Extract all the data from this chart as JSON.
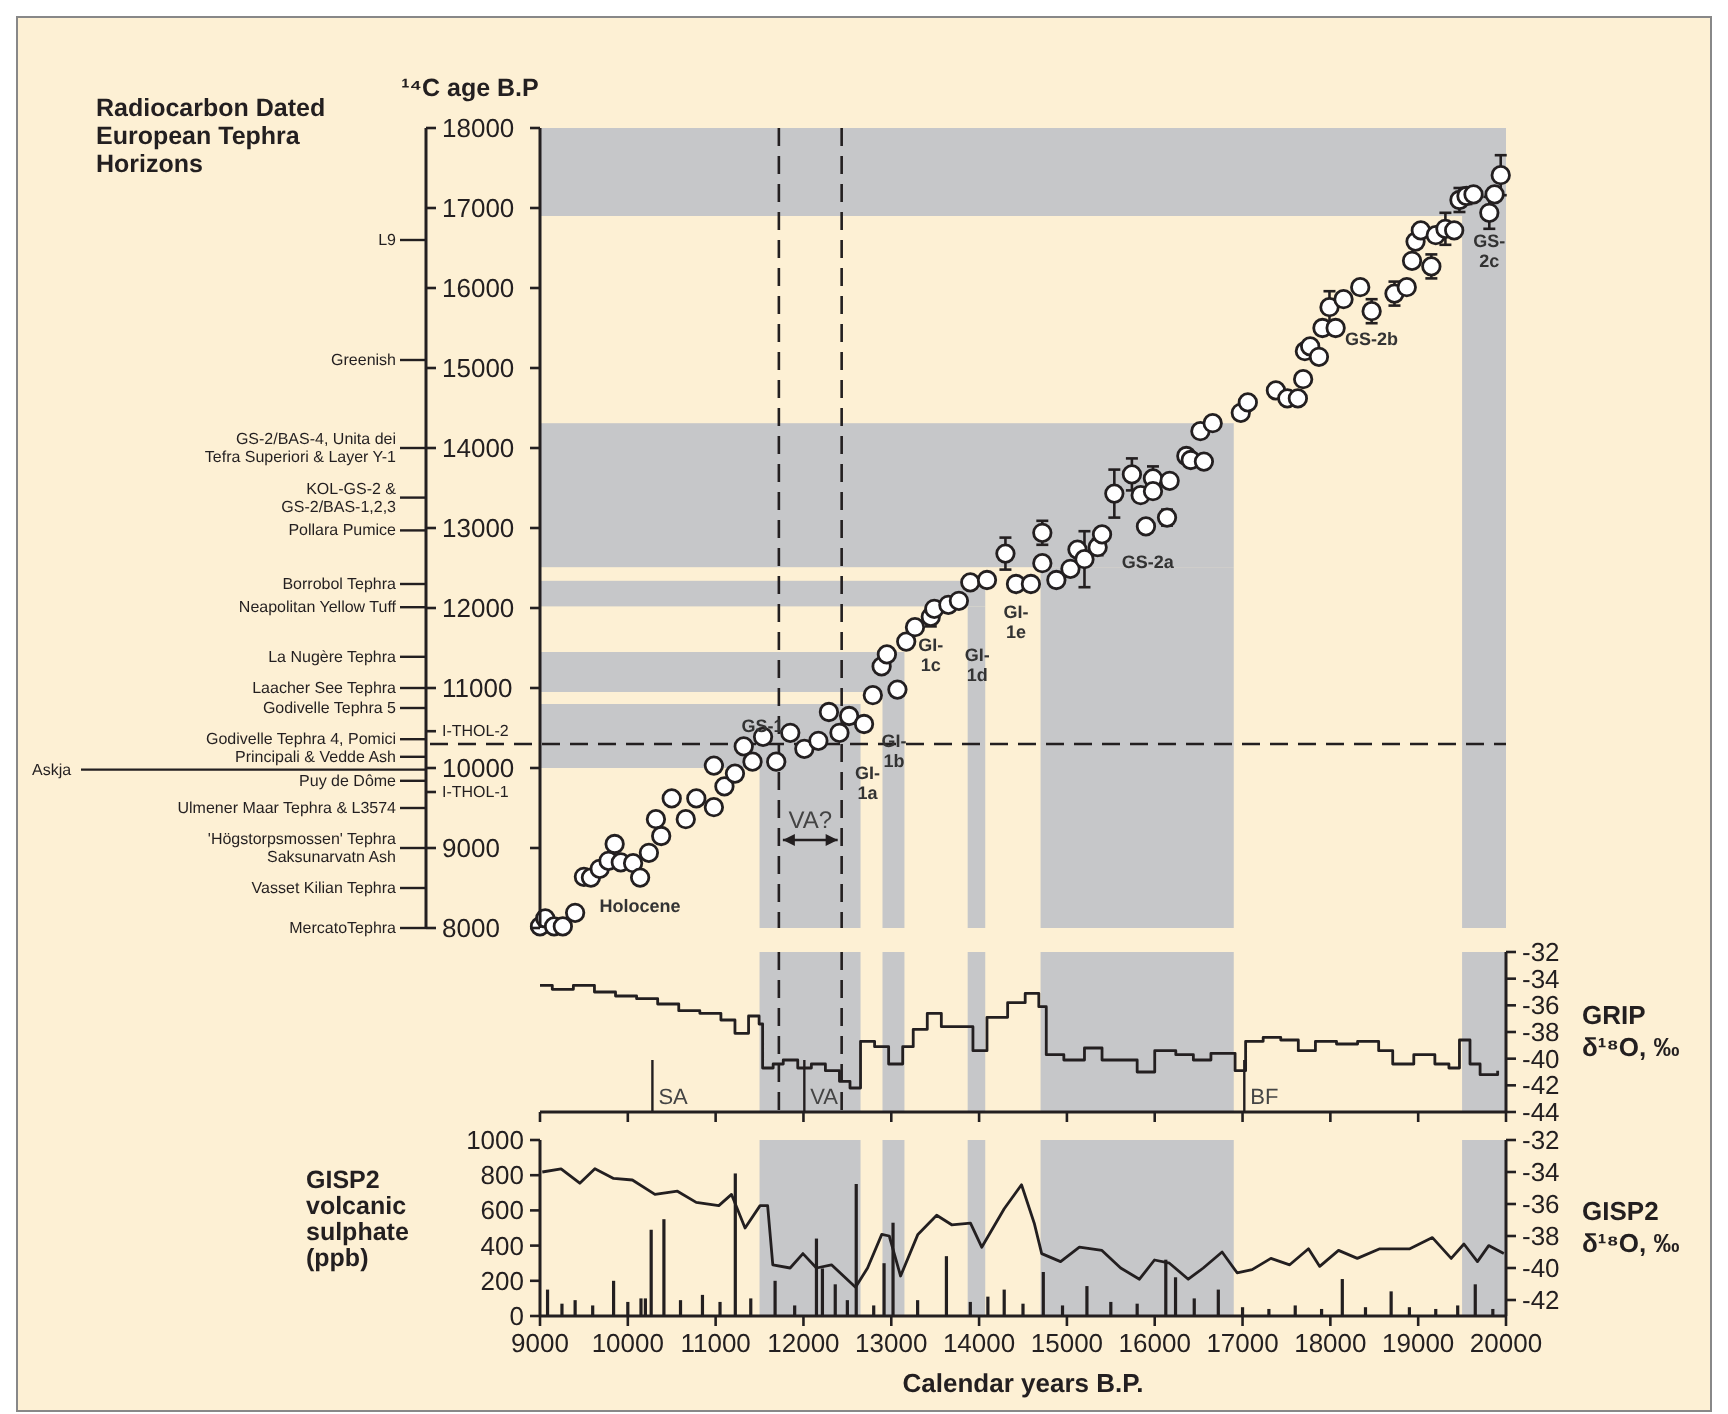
{
  "chart_data": [
    {
      "type": "scatter",
      "title": "Radiocarbon Dated\nEuropean Tephra\nHorizons",
      "ylabel": "¹⁴C age B.P",
      "xlim": [
        9000,
        20000
      ],
      "ylim": [
        8000,
        18000
      ],
      "yticks": [
        8000,
        9000,
        10000,
        11000,
        12000,
        13000,
        14000,
        15000,
        16000,
        17000,
        18000
      ],
      "marker": "circle",
      "color": "#ffffff",
      "x": [
        9000,
        9060,
        9160,
        9260,
        9400,
        9500,
        9580,
        9680,
        9780,
        9850,
        9920,
        10060,
        10140,
        10240,
        10320,
        10380,
        10500,
        10660,
        10780,
        10980,
        11100,
        11220,
        10980,
        11320,
        11420,
        11540,
        11690,
        11850,
        12010,
        12170,
        12290,
        12410,
        12520,
        12690,
        12790,
        12890,
        12950,
        13070,
        13170,
        13270,
        13450,
        13490,
        13650,
        13770,
        13900,
        14090,
        14300,
        14420,
        14590,
        14720,
        14720,
        14880,
        15040,
        15120,
        15200,
        15350,
        15400,
        15540,
        15740,
        15840,
        15900,
        15980,
        15980,
        16140,
        16170,
        16360,
        16410,
        16560,
        16520,
        16660,
        16980,
        17060,
        17380,
        17510,
        17630,
        17690,
        17710,
        17770,
        17870,
        17910,
        17990,
        18060,
        18150,
        18340,
        18470,
        18730,
        18870,
        18930,
        18970,
        19030,
        19150,
        19200,
        19310,
        19410,
        19470,
        19550,
        19630,
        19810,
        19870,
        19940
      ],
      "values": [
        8020,
        8120,
        8020,
        8020,
        8190,
        8640,
        8630,
        8740,
        8840,
        9050,
        8820,
        8810,
        8630,
        8940,
        9360,
        9150,
        9620,
        9360,
        9620,
        9510,
        9770,
        9930,
        10030,
        10270,
        10080,
        10390,
        10080,
        10440,
        10240,
        10340,
        10700,
        10440,
        10650,
        10550,
        10910,
        11270,
        11420,
        10980,
        11580,
        11760,
        11890,
        11990,
        12040,
        12090,
        12320,
        12350,
        12680,
        12300,
        12300,
        12940,
        12560,
        12350,
        12490,
        12730,
        12610,
        12760,
        12920,
        13430,
        13670,
        13410,
        13020,
        13620,
        13460,
        13130,
        13590,
        13900,
        13850,
        13830,
        14210,
        14310,
        14440,
        14570,
        14720,
        14620,
        14620,
        14860,
        15210,
        15270,
        15140,
        15500,
        15760,
        15500,
        15860,
        16010,
        15710,
        15930,
        16010,
        16340,
        16580,
        16720,
        16270,
        16660,
        16740,
        16720,
        17100,
        17150,
        17170,
        16940,
        17170,
        17410
      ],
      "errors": [
        null,
        null,
        null,
        null,
        null,
        null,
        null,
        null,
        null,
        null,
        null,
        null,
        null,
        null,
        null,
        null,
        null,
        null,
        null,
        null,
        null,
        null,
        null,
        null,
        null,
        null,
        null,
        null,
        null,
        null,
        null,
        null,
        null,
        null,
        null,
        null,
        null,
        null,
        null,
        null,
        120,
        null,
        null,
        null,
        null,
        null,
        200,
        null,
        null,
        150,
        null,
        null,
        null,
        null,
        350,
        100,
        null,
        300,
        200,
        null,
        null,
        150,
        null,
        100,
        null,
        null,
        null,
        null,
        null,
        null,
        null,
        null,
        null,
        null,
        null,
        null,
        null,
        null,
        null,
        null,
        200,
        null,
        null,
        null,
        150,
        150,
        null,
        null,
        null,
        null,
        150,
        null,
        200,
        null,
        150,
        100,
        null,
        200,
        null,
        250
      ],
      "bands": [
        {
          "axis": "x",
          "from": 11500,
          "to": 12650,
          "color": "#c6c7c9"
        },
        {
          "axis": "x",
          "from": 12900,
          "to": 13150,
          "color": "#c6c7c9"
        },
        {
          "axis": "x",
          "from": 13870,
          "to": 14070,
          "color": "#c6c7c9"
        },
        {
          "axis": "x",
          "from": 14700,
          "to": 16900,
          "color": "#c6c7c9"
        },
        {
          "axis": "x",
          "from": 19500,
          "to": 20000,
          "color": "#c6c7c9"
        },
        {
          "axis": "y",
          "from": 10000,
          "to": 10800,
          "color": "#c6c7c9"
        },
        {
          "axis": "y",
          "from": 10950,
          "to": 11450,
          "color": "#c6c7c9"
        },
        {
          "axis": "y",
          "from": 12020,
          "to": 12340,
          "color": "#c6c7c9"
        },
        {
          "axis": "y",
          "from": 12510,
          "to": 14310,
          "color": "#c6c7c9"
        },
        {
          "axis": "y",
          "from": 16900,
          "to": 18000,
          "color": "#c6c7c9"
        }
      ],
      "ref_lines": [
        {
          "axis": "y",
          "value": 10300,
          "line_style": "dashed"
        },
        {
          "axis": "x",
          "value": 11720,
          "line_style": "dashed",
          "label": "VA?"
        },
        {
          "axis": "x",
          "value": 12435,
          "line_style": "dashed"
        },
        {
          "axis": "y",
          "value": 16600,
          "label": "L9"
        },
        {
          "axis": "y",
          "value": 15100,
          "label": "Greenish"
        },
        {
          "axis": "y",
          "value": 14000,
          "label": "GS-2/BAS-4, Unita dei\nTefra Superiori & Layer Y-1"
        },
        {
          "axis": "y",
          "value": 13380,
          "label": "KOL-GS-2 &\nGS-2/BAS-1,2,3"
        },
        {
          "axis": "y",
          "value": 12970,
          "label": "Pollara Pumice"
        },
        {
          "axis": "y",
          "value": 12300,
          "label": "Borrobol Tephra"
        },
        {
          "axis": "y",
          "value": 12010,
          "label": "Neapolitan Yellow Tuff"
        },
        {
          "axis": "y",
          "value": 11390,
          "label": "La Nugère Tephra"
        },
        {
          "axis": "y",
          "value": 11000,
          "label": "Laacher See Tephra"
        },
        {
          "axis": "y",
          "value": 10750,
          "label": "Godivelle Tephra 5"
        },
        {
          "axis": "y",
          "value": 10460,
          "label": "I-THOL-2"
        },
        {
          "axis": "y",
          "value": 10360,
          "label": "Godivelle Tephra 4, Pomici"
        },
        {
          "axis": "y",
          "value": 10140,
          "label": "Principali & Vedde Ash"
        },
        {
          "axis": "y",
          "value": 9980,
          "label": "Askja"
        },
        {
          "axis": "y",
          "value": 9840,
          "label": "Puy de Dôme"
        },
        {
          "axis": "y",
          "value": 9700,
          "label": "I-THOL-1"
        },
        {
          "axis": "y",
          "value": 9500,
          "label": "Ulmener Maar Tephra & L3574"
        },
        {
          "axis": "y",
          "value": 9000,
          "label": "'Högstorpsmossen' Tephra\nSaksunarvatn Ash"
        },
        {
          "axis": "y",
          "value": 8500,
          "label": "Vasset Kilian Tephra"
        },
        {
          "axis": "y",
          "value": 8000,
          "label": "MercatoTephra"
        }
      ],
      "annotations": [
        {
          "text": "Holocene",
          "x": 10140,
          "y": 8630
        },
        {
          "text": "GS-1",
          "x": 11535,
          "y": 10300
        },
        {
          "text": "GI-\n1a",
          "x": 12730,
          "y": 9940
        },
        {
          "text": "GI-\n1b",
          "x": 13030,
          "y": 10340
        },
        {
          "text": "GI-\n1c",
          "x": 13450,
          "y": 11890
        },
        {
          "text": "GI-\n1d",
          "x": 13980,
          "y": 11410
        },
        {
          "text": "GI-\n1e",
          "x": 14420,
          "y": 12300
        },
        {
          "text": "GS-2a",
          "x": 15920,
          "y": 12580
        },
        {
          "text": "GS-2b",
          "x": 18470,
          "y": 15710
        },
        {
          "text": "GS-\n2c",
          "x": 19810,
          "y": 16940
        }
      ]
    },
    {
      "type": "step",
      "ylabel": "GRIP\nδ¹⁸O, ‰",
      "xlim": [
        9000,
        20000
      ],
      "ylim": [
        -44,
        -32
      ],
      "tick_labels": "y",
      "color": "#231f20",
      "xticks": [
        {
          "value": 9000,
          "label": null
        },
        {
          "value": 10000,
          "label": null
        },
        {
          "value": 11000,
          "label": null
        },
        {
          "value": 12000,
          "label": null
        },
        {
          "value": 13000,
          "label": null
        },
        {
          "value": 14000,
          "label": null
        },
        {
          "value": 15000,
          "label": null
        },
        {
          "value": 16000,
          "label": null
        },
        {
          "value": 17000,
          "label": null
        },
        {
          "value": 18000,
          "label": null
        },
        {
          "value": 19000,
          "label": null
        },
        {
          "value": 20000,
          "label": null
        }
      ],
      "yticks": [
        -44,
        -42,
        -40,
        -38,
        -36,
        -34,
        -32
      ],
      "x": [
        9000,
        9140,
        9380,
        9620,
        9860,
        10100,
        10340,
        10580,
        10820,
        11060,
        11220,
        11375,
        11495,
        11535,
        11655,
        11770,
        11935,
        12090,
        12250,
        12410,
        12530,
        12650,
        12810,
        12970,
        13130,
        13250,
        13410,
        13570,
        13770,
        13930,
        14090,
        14325,
        14525,
        14680,
        14765,
        14965,
        15200,
        15400,
        15600,
        15800,
        16000,
        16240,
        16440,
        16640,
        16915,
        17035,
        17235,
        17435,
        17635,
        17830,
        18070,
        18310,
        18550,
        18710,
        18950,
        19190,
        19350,
        19470,
        19590,
        19705,
        19905
      ],
      "values": [
        -34.5,
        -34.8,
        -34.5,
        -35.0,
        -35.3,
        -35.5,
        -35.9,
        -36.4,
        -36.6,
        -37.1,
        -38.1,
        -36.8,
        -37.4,
        -40.7,
        -40.4,
        -40.1,
        -40.7,
        -40.4,
        -40.9,
        -41.7,
        -42.2,
        -38.7,
        -39.1,
        -40.4,
        -39.1,
        -37.8,
        -36.6,
        -37.6,
        -37.6,
        -39.4,
        -36.9,
        -35.8,
        -35.1,
        -36.1,
        -39.7,
        -40.1,
        -39.2,
        -40.1,
        -40.1,
        -41.0,
        -39.4,
        -39.7,
        -40.1,
        -39.6,
        -40.9,
        -38.7,
        -38.4,
        -38.6,
        -39.4,
        -38.7,
        -38.9,
        -38.7,
        -39.4,
        -40.4,
        -39.7,
        -40.4,
        -40.7,
        -38.6,
        -40.4,
        -41.2,
        -40.9
      ],
      "bands": [
        {
          "axis": "x",
          "from": 11500,
          "to": 12650,
          "color": "#c6c7c9"
        },
        {
          "axis": "x",
          "from": 12900,
          "to": 13150,
          "color": "#c6c7c9"
        },
        {
          "axis": "x",
          "from": 13870,
          "to": 14070,
          "color": "#c6c7c9"
        },
        {
          "axis": "x",
          "from": 14700,
          "to": 16900,
          "color": "#c6c7c9"
        },
        {
          "axis": "x",
          "from": 19500,
          "to": 20000,
          "color": "#c6c7c9"
        }
      ],
      "ref_lines": [
        {
          "axis": "x",
          "value": 11720,
          "line_style": "dashed"
        },
        {
          "axis": "x",
          "value": 12435,
          "line_style": "dashed"
        },
        {
          "axis": "x",
          "value": 10280,
          "label": "SA"
        },
        {
          "axis": "x",
          "value": 12010,
          "label": "VA"
        },
        {
          "axis": "x",
          "value": 17020,
          "label": "BF"
        }
      ]
    },
    {
      "type": "bar",
      "ylabel": "GISP2\nvolcanic\nsulphate\n(ppb)",
      "y2label": "GISP2\nδ¹⁸O, ‰",
      "xlabel": "Calendar years B.P.",
      "xlim": [
        9000,
        20000
      ],
      "xticks": [
        9000,
        10000,
        11000,
        12000,
        13000,
        14000,
        15000,
        16000,
        17000,
        18000,
        19000,
        20000
      ],
      "ylim": [
        0,
        1000
      ],
      "yticks": [
        0,
        200,
        400,
        600,
        800,
        1000
      ],
      "y2lim": [
        -43,
        -32
      ],
      "y2ticks": [
        -42,
        -40,
        -38,
        -36,
        -34,
        -32
      ],
      "bands": [
        {
          "axis": "x",
          "from": 11500,
          "to": 12650,
          "color": "#c6c7c9"
        },
        {
          "axis": "x",
          "from": 12900,
          "to": 13150,
          "color": "#c6c7c9"
        },
        {
          "axis": "x",
          "from": 13870,
          "to": 14070,
          "color": "#c6c7c9"
        },
        {
          "axis": "x",
          "from": 14700,
          "to": 16900,
          "color": "#c6c7c9"
        },
        {
          "axis": "x",
          "from": 19500,
          "to": 20000,
          "color": "#c6c7c9"
        }
      ],
      "series": [
        {
          "color": "#231f20",
          "x": [
            9086,
            9250,
            9400,
            9600,
            9838,
            10000,
            10150,
            10200,
            10266,
            10411,
            10600,
            10850,
            11050,
            11224,
            11400,
            11677,
            11900,
            12148,
            12216,
            12362,
            12500,
            12601,
            12800,
            12918,
            13020,
            13300,
            13628,
            13900,
            14100,
            14286,
            14500,
            14731,
            14950,
            15228,
            15500,
            15800,
            16126,
            16237,
            16450,
            16724,
            17000,
            17300,
            17600,
            17900,
            18136,
            18400,
            18692,
            18900,
            19200,
            19450,
            19650,
            19850
          ],
          "values": [
            150,
            70,
            90,
            60,
            200,
            80,
            100,
            100,
            490,
            550,
            90,
            120,
            80,
            810,
            100,
            200,
            60,
            440,
            270,
            180,
            90,
            750,
            60,
            300,
            530,
            90,
            340,
            80,
            110,
            150,
            70,
            250,
            60,
            170,
            80,
            70,
            320,
            220,
            100,
            150,
            50,
            40,
            60,
            40,
            210,
            50,
            140,
            50,
            40,
            60,
            180,
            40
          ]
        },
        {
          "type": "line",
          "axis": "y2",
          "color": "#231f20",
          "x": [
            9026,
            9240,
            9453,
            9625,
            9838,
            10052,
            10309,
            10565,
            10779,
            11036,
            11181,
            11335,
            11506,
            11592,
            11651,
            11848,
            11994,
            12148,
            12319,
            12593,
            12730,
            12892,
            12977,
            13106,
            13303,
            13517,
            13688,
            13902,
            14030,
            14286,
            14483,
            14628,
            14713,
            14928,
            15142,
            15399,
            15612,
            15826,
            15997,
            16168,
            16382,
            16553,
            16767,
            16938,
            17109,
            17323,
            17537,
            17751,
            17879,
            18093,
            18307,
            18563,
            18905,
            19162,
            19376,
            19521,
            19675,
            19803,
            19975
          ],
          "values": [
            -34.0,
            -33.8,
            -34.7,
            -33.8,
            -34.4,
            -34.5,
            -35.4,
            -35.2,
            -35.9,
            -36.1,
            -35.4,
            -37.5,
            -36.1,
            -36.1,
            -39.8,
            -40.0,
            -39.1,
            -40.0,
            -39.8,
            -41.2,
            -40.0,
            -37.9,
            -38.0,
            -40.5,
            -37.9,
            -36.7,
            -37.3,
            -37.2,
            -38.7,
            -36.3,
            -34.8,
            -37.2,
            -39.1,
            -39.6,
            -38.7,
            -38.9,
            -40.0,
            -40.7,
            -39.5,
            -39.7,
            -40.7,
            -40.0,
            -39.0,
            -40.3,
            -40.1,
            -39.4,
            -39.8,
            -38.8,
            -39.9,
            -38.9,
            -39.4,
            -38.8,
            -38.8,
            -38.1,
            -39.4,
            -38.5,
            -39.6,
            -38.6,
            -39.1
          ]
        }
      ]
    }
  ]
}
